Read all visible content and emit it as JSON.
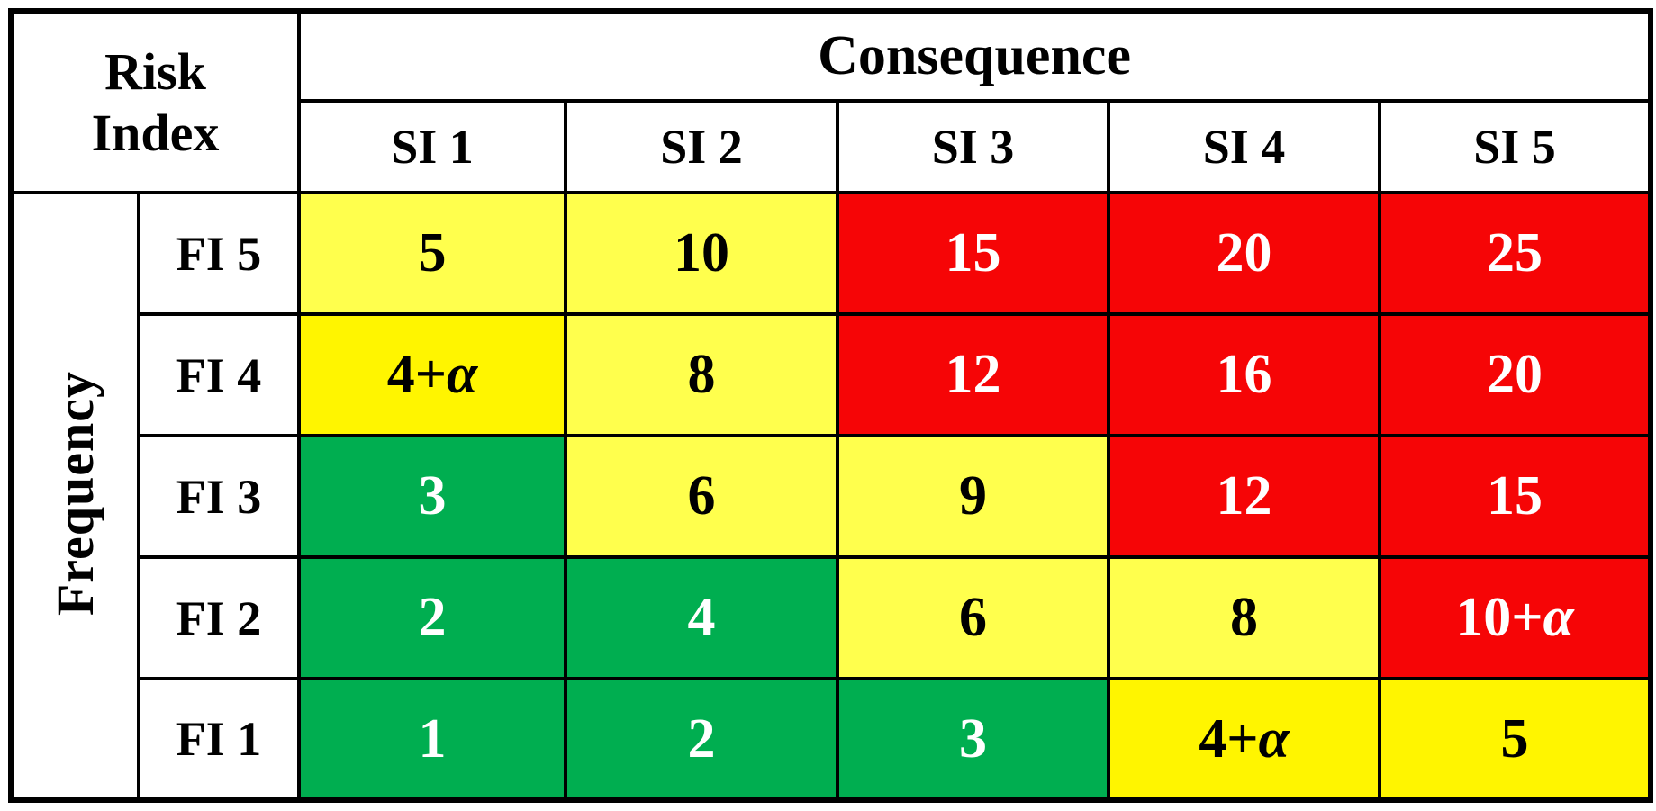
{
  "header": {
    "risk_index_lines": [
      "Risk",
      "Index"
    ],
    "consequence": "Consequence",
    "frequency": "Frequency"
  },
  "chart_data": {
    "type": "heatmap",
    "title": "Risk Index",
    "x_axis_label": "Consequence",
    "y_axis_label": "Frequency",
    "columns": [
      "SI 1",
      "SI 2",
      "SI 3",
      "SI 4",
      "SI 5"
    ],
    "rows": [
      "FI 5",
      "FI 4",
      "FI 3",
      "FI 2",
      "FI 1"
    ],
    "values": [
      [
        "5",
        "10",
        "15",
        "20",
        "25"
      ],
      [
        "4+α",
        "8",
        "12",
        "16",
        "20"
      ],
      [
        "3",
        "6",
        "9",
        "12",
        "15"
      ],
      [
        "2",
        "4",
        "6",
        "8",
        "10+α"
      ],
      [
        "1",
        "2",
        "3",
        "4+α",
        "5"
      ]
    ],
    "cell_colors": [
      [
        "light_yellow",
        "light_yellow",
        "red",
        "red",
        "red"
      ],
      [
        "deep_yellow",
        "light_yellow",
        "red",
        "red",
        "red"
      ],
      [
        "green",
        "light_yellow",
        "light_yellow",
        "red",
        "red"
      ],
      [
        "green",
        "green",
        "light_yellow",
        "light_yellow",
        "red"
      ],
      [
        "green",
        "green",
        "green",
        "deep_yellow",
        "deep_yellow"
      ]
    ],
    "legend": "none",
    "grid": true
  },
  "colors": {
    "light_yellow": {
      "bg": "#FFFF4D",
      "fg": "#000000"
    },
    "deep_yellow": {
      "bg": "#FFF500",
      "fg": "#000000"
    },
    "green": {
      "bg": "#00AE50",
      "fg": "#FFFFFF"
    },
    "red": {
      "bg": "#F60506",
      "fg": "#FFFFFF"
    },
    "border": "#000000",
    "header_bg": "#FFFFFF"
  }
}
